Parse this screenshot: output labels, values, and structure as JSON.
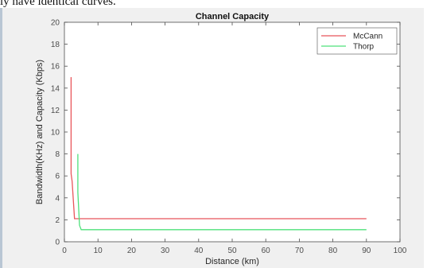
{
  "page": {
    "top_caption": "ly have identical curves."
  },
  "chart_data": {
    "type": "line",
    "title": "Channel Capacity",
    "xlabel": "Distance (km)",
    "ylabel": "Bandwidth(KHz) and Capacity (Kbps)",
    "xlim": [
      0,
      100
    ],
    "ylim": [
      0,
      20
    ],
    "xticks": [
      0,
      10,
      20,
      30,
      40,
      50,
      60,
      70,
      80,
      90,
      100
    ],
    "yticks": [
      0,
      2,
      4,
      6,
      8,
      10,
      12,
      14,
      16,
      18,
      20
    ],
    "grid": false,
    "legend_position": "top-right",
    "series": [
      {
        "name": "McCann",
        "color": "#e8555a",
        "x": [
          2,
          2,
          2.3,
          3,
          90
        ],
        "y": [
          15,
          6.2,
          5.5,
          2.1,
          2.1
        ]
      },
      {
        "name": "Thorp",
        "color": "#4ee07a",
        "x": [
          4,
          4,
          4.5,
          5,
          90
        ],
        "y": [
          8,
          4.5,
          1.5,
          1.1,
          1.1
        ]
      }
    ]
  }
}
